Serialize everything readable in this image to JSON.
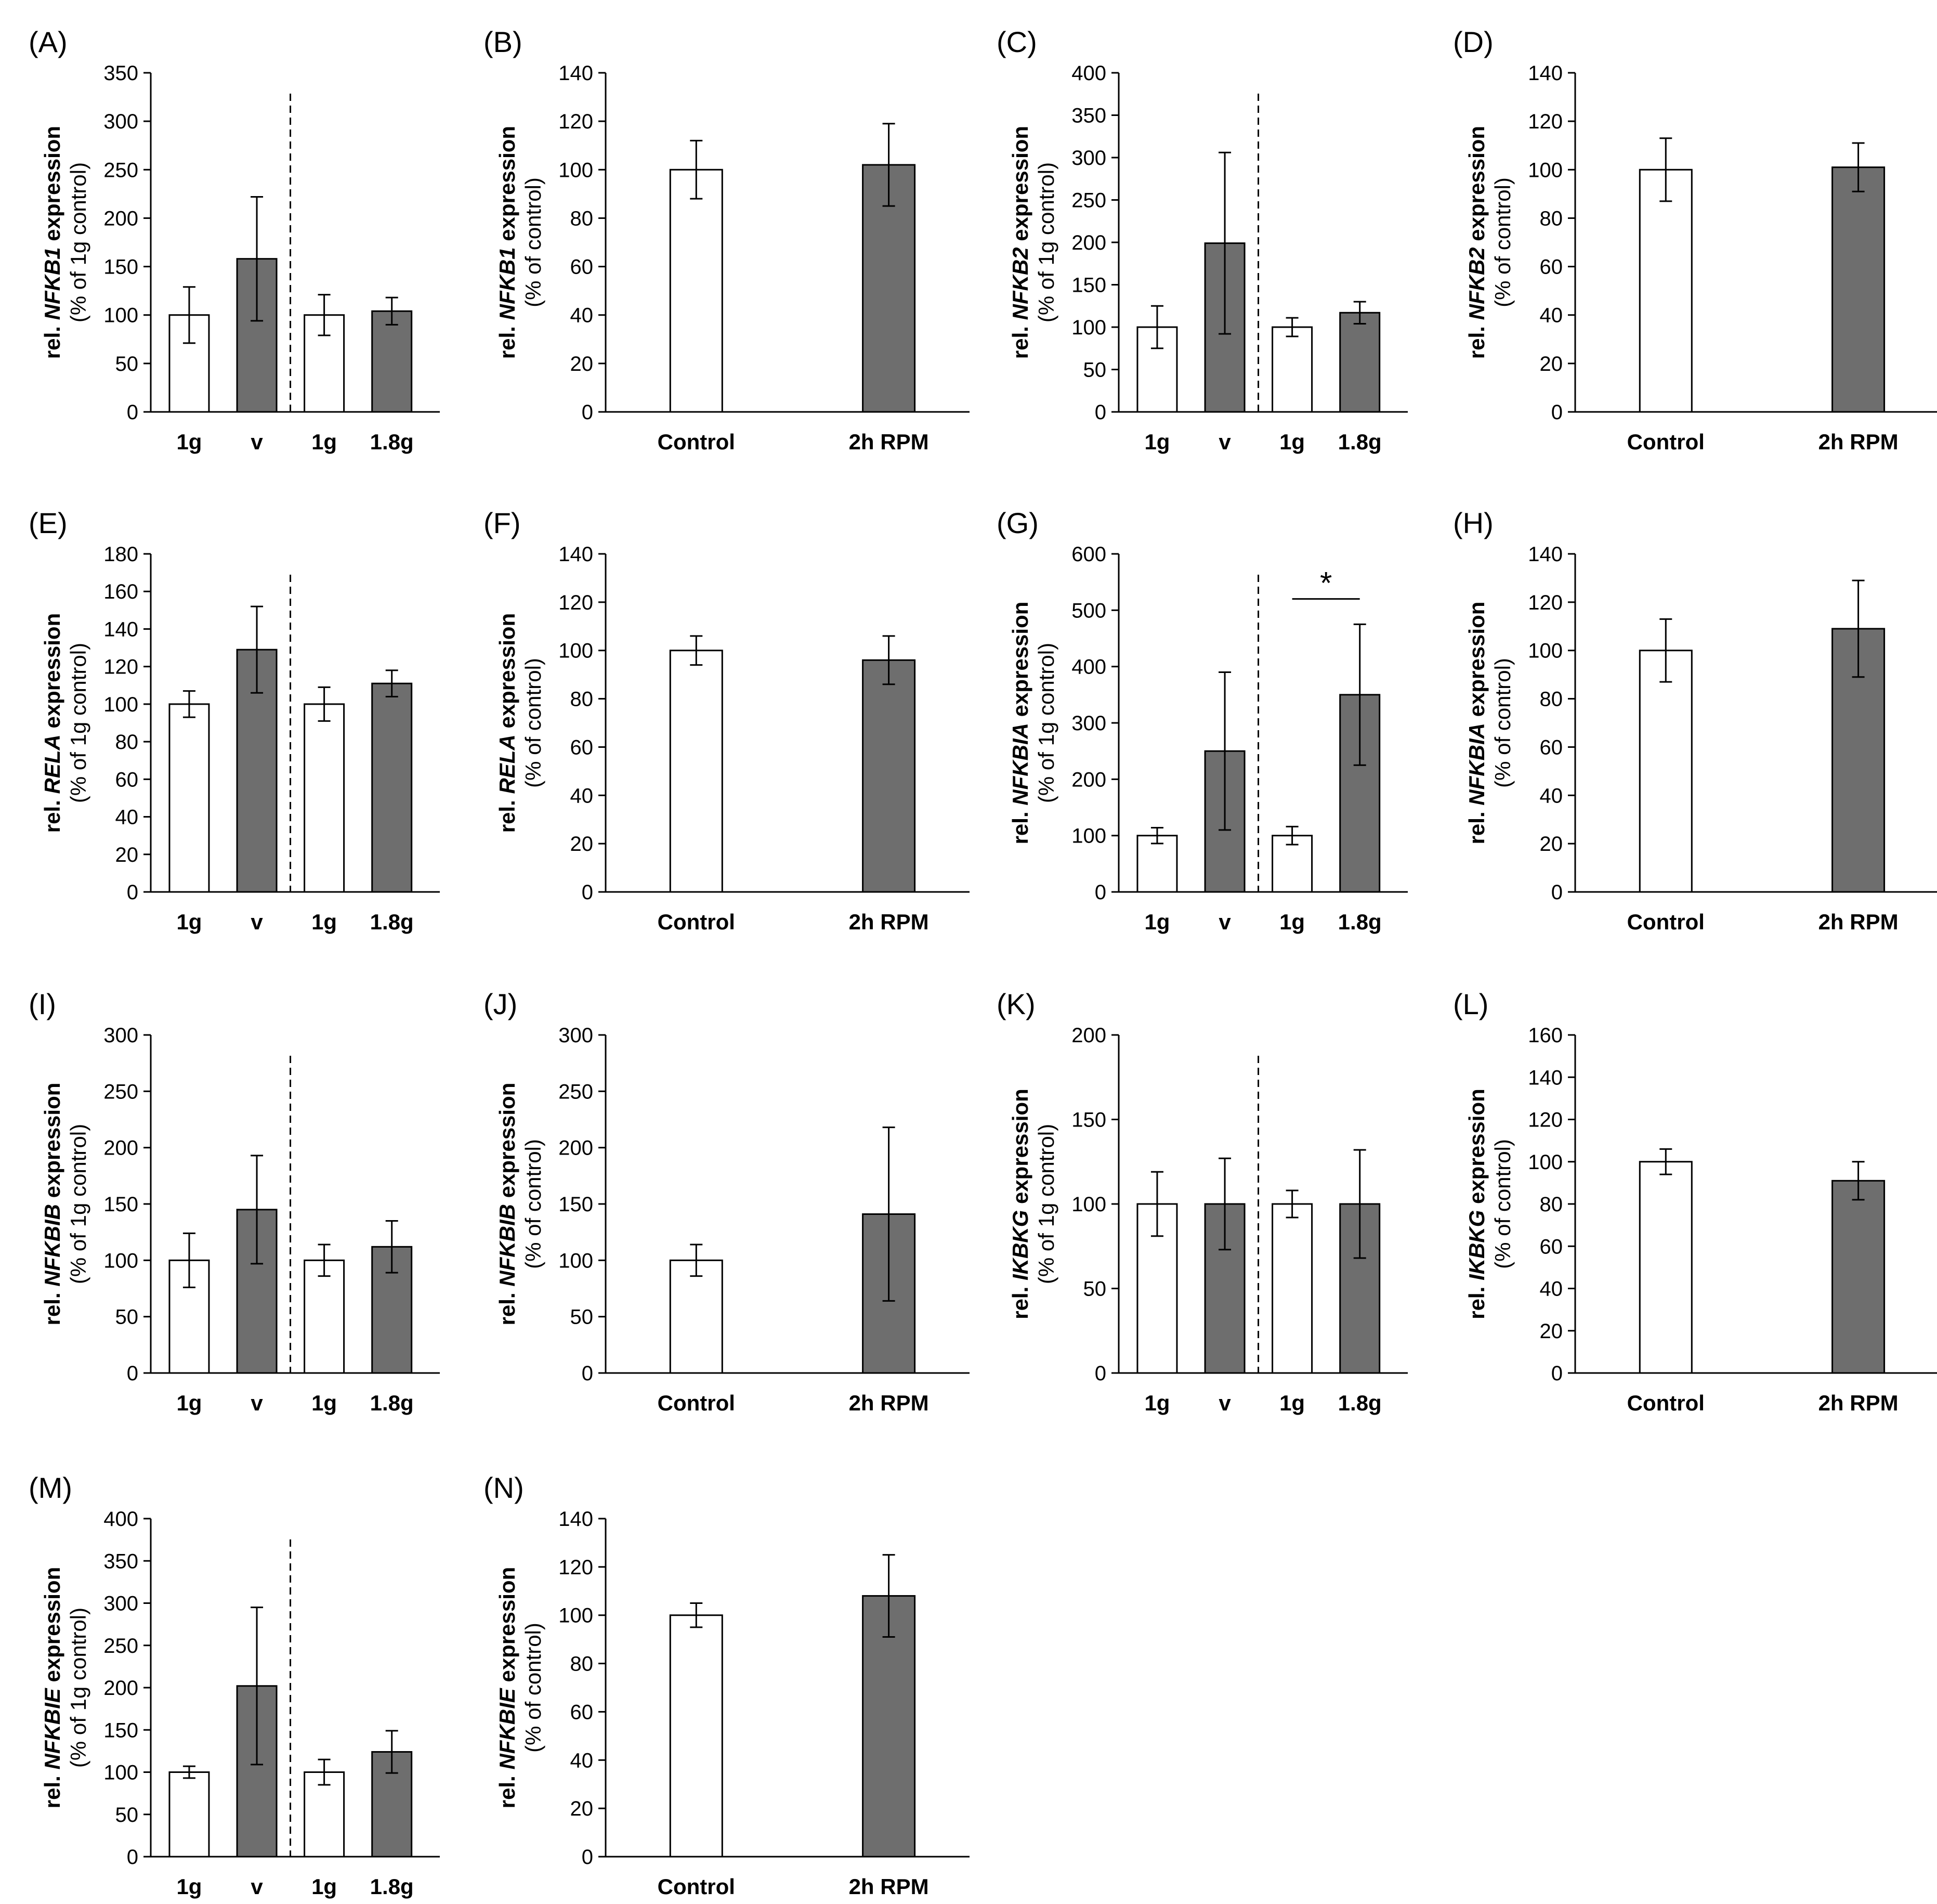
{
  "colors": {
    "control": "#ffffff",
    "treated": "#6e6e6e",
    "axis": "#000000"
  },
  "chart_data": [
    {
      "label": "(A)",
      "type": "bar",
      "gene": "NFKB1",
      "ylabel_prefix": "rel. ",
      "ylabel_suffix": " expression",
      "ylabel2": "(% of 1g control)",
      "categories": [
        "1g",
        "v",
        "1g",
        "1.8g"
      ],
      "values": [
        100,
        158,
        100,
        104
      ],
      "errors": [
        29,
        64,
        21,
        14
      ],
      "ylim": [
        0,
        350
      ],
      "ticks": [
        0,
        50,
        100,
        150,
        200,
        250,
        300,
        350
      ],
      "divider": true
    },
    {
      "label": "(B)",
      "type": "bar",
      "gene": "NFKB1",
      "ylabel_prefix": "rel. ",
      "ylabel_suffix": " expression",
      "ylabel2": "(% of control)",
      "categories": [
        "Control",
        "2h RPM"
      ],
      "values": [
        100,
        102
      ],
      "errors": [
        12,
        17
      ],
      "ylim": [
        0,
        140
      ],
      "ticks": [
        0,
        20,
        40,
        60,
        80,
        100,
        120,
        140
      ],
      "divider": false
    },
    {
      "label": "(C)",
      "type": "bar",
      "gene": "NFKB2",
      "ylabel_prefix": "rel. ",
      "ylabel_suffix": " expression",
      "ylabel2": "(% of 1g control)",
      "categories": [
        "1g",
        "v",
        "1g",
        "1.8g"
      ],
      "values": [
        100,
        199,
        100,
        117
      ],
      "errors": [
        25,
        107,
        11,
        13
      ],
      "ylim": [
        0,
        400
      ],
      "ticks": [
        0,
        50,
        100,
        150,
        200,
        250,
        300,
        350,
        400
      ],
      "divider": true
    },
    {
      "label": "(D)",
      "type": "bar",
      "gene": "NFKB2",
      "ylabel_prefix": "rel. ",
      "ylabel_suffix": " expression",
      "ylabel2": "(% of control)",
      "categories": [
        "Control",
        "2h RPM"
      ],
      "values": [
        100,
        101
      ],
      "errors": [
        13,
        10
      ],
      "ylim": [
        0,
        140
      ],
      "ticks": [
        0,
        20,
        40,
        60,
        80,
        100,
        120,
        140
      ],
      "divider": false
    },
    {
      "label": "(E)",
      "type": "bar",
      "gene": "RELA",
      "ylabel_prefix": "rel. ",
      "ylabel_suffix": " expression",
      "ylabel2": "(% of 1g control)",
      "categories": [
        "1g",
        "v",
        "1g",
        "1.8g"
      ],
      "values": [
        100,
        129,
        100,
        111
      ],
      "errors": [
        7,
        23,
        9,
        7
      ],
      "ylim": [
        0,
        180
      ],
      "ticks": [
        0,
        20,
        40,
        60,
        80,
        100,
        120,
        140,
        160,
        180
      ],
      "divider": true
    },
    {
      "label": "(F)",
      "type": "bar",
      "gene": "RELA",
      "ylabel_prefix": "rel. ",
      "ylabel_suffix": " expression",
      "ylabel2": "(% of control)",
      "categories": [
        "Control",
        "2h RPM"
      ],
      "values": [
        100,
        96
      ],
      "errors": [
        6,
        10
      ],
      "ylim": [
        0,
        140
      ],
      "ticks": [
        0,
        20,
        40,
        60,
        80,
        100,
        120,
        140
      ],
      "divider": false
    },
    {
      "label": "(G)",
      "type": "bar",
      "gene": "NFKBIA",
      "ylabel_prefix": "rel. ",
      "ylabel_suffix": " expression",
      "ylabel2": "(% of 1g control)",
      "categories": [
        "1g",
        "v",
        "1g",
        "1.8g"
      ],
      "values": [
        100,
        250,
        100,
        350
      ],
      "errors": [
        14,
        140,
        16,
        125
      ],
      "ylim": [
        0,
        600
      ],
      "ticks": [
        0,
        100,
        200,
        300,
        400,
        500,
        600
      ],
      "divider": true,
      "significance": {
        "between": [
          2,
          3
        ],
        "symbol": "*",
        "level": 520
      }
    },
    {
      "label": "(H)",
      "type": "bar",
      "gene": "NFKBIA",
      "ylabel_prefix": "rel. ",
      "ylabel_suffix": " expression",
      "ylabel2": "(% of control)",
      "categories": [
        "Control",
        "2h RPM"
      ],
      "values": [
        100,
        109
      ],
      "errors": [
        13,
        20
      ],
      "ylim": [
        0,
        140
      ],
      "ticks": [
        0,
        20,
        40,
        60,
        80,
        100,
        120,
        140
      ],
      "divider": false
    },
    {
      "label": "(I)",
      "type": "bar",
      "gene": "NFKBIB",
      "ylabel_prefix": "rel. ",
      "ylabel_suffix": " expression",
      "ylabel2": "(% of 1g control)",
      "categories": [
        "1g",
        "v",
        "1g",
        "1.8g"
      ],
      "values": [
        100,
        145,
        100,
        112
      ],
      "errors": [
        24,
        48,
        14,
        23
      ],
      "ylim": [
        0,
        300
      ],
      "ticks": [
        0,
        50,
        100,
        150,
        200,
        250,
        300
      ],
      "divider": true
    },
    {
      "label": "(J)",
      "type": "bar",
      "gene": "NFKBIB",
      "ylabel_prefix": "rel. ",
      "ylabel_suffix": " expression",
      "ylabel2": "(% of control)",
      "categories": [
        "Control",
        "2h RPM"
      ],
      "values": [
        100,
        141
      ],
      "errors": [
        14,
        77
      ],
      "ylim": [
        0,
        300
      ],
      "ticks": [
        0,
        50,
        100,
        150,
        200,
        250,
        300
      ],
      "divider": false
    },
    {
      "label": "(K)",
      "type": "bar",
      "gene": "IKBKG",
      "ylabel_prefix": "rel. ",
      "ylabel_suffix": " expression",
      "ylabel2": "(% of 1g control)",
      "categories": [
        "1g",
        "v",
        "1g",
        "1.8g"
      ],
      "values": [
        100,
        100,
        100,
        100
      ],
      "errors": [
        19,
        27,
        8,
        32
      ],
      "ylim": [
        0,
        200
      ],
      "ticks": [
        0,
        50,
        100,
        150,
        200
      ],
      "divider": true
    },
    {
      "label": "(L)",
      "type": "bar",
      "gene": "IKBKG",
      "ylabel_prefix": "rel. ",
      "ylabel_suffix": " expression",
      "ylabel2": "(% of control)",
      "categories": [
        "Control",
        "2h RPM"
      ],
      "values": [
        100,
        91
      ],
      "errors": [
        6,
        9
      ],
      "ylim": [
        0,
        160
      ],
      "ticks": [
        0,
        20,
        40,
        60,
        80,
        100,
        120,
        140,
        160
      ],
      "divider": false
    },
    {
      "label": "(M)",
      "type": "bar",
      "gene": "NFKBIE",
      "ylabel_prefix": "rel. ",
      "ylabel_suffix": " expression",
      "ylabel2": "(% of 1g control)",
      "categories": [
        "1g",
        "v",
        "1g",
        "1.8g"
      ],
      "values": [
        100,
        202,
        100,
        124
      ],
      "errors": [
        7,
        93,
        15,
        25
      ],
      "ylim": [
        0,
        400
      ],
      "ticks": [
        0,
        50,
        100,
        150,
        200,
        250,
        300,
        350,
        400
      ],
      "divider": true
    },
    {
      "label": "(N)",
      "type": "bar",
      "gene": "NFKBIE",
      "ylabel_prefix": "rel. ",
      "ylabel_suffix": " expression",
      "ylabel2": "(% of control)",
      "categories": [
        "Control",
        "2h RPM"
      ],
      "values": [
        100,
        108
      ],
      "errors": [
        5,
        17
      ],
      "ylim": [
        0,
        140
      ],
      "ticks": [
        0,
        20,
        40,
        60,
        80,
        100,
        120,
        140
      ],
      "divider": false
    }
  ]
}
